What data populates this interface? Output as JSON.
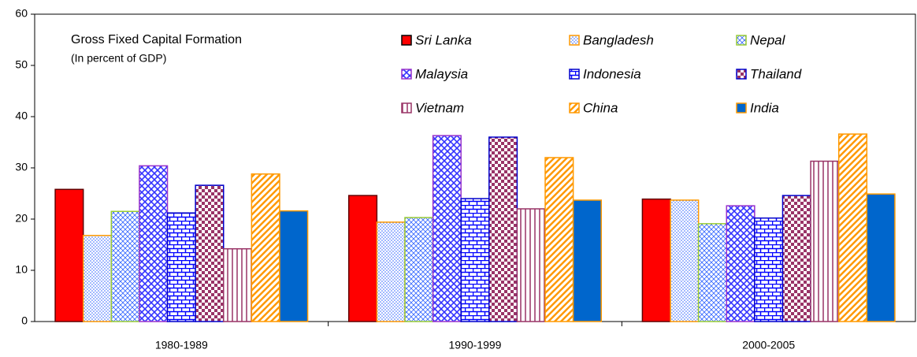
{
  "chart_data": {
    "type": "bar",
    "title": "Gross Fixed Capital Formation",
    "subtitle": "(In percent of GDP)",
    "categories": [
      "1980-1989",
      "1990-1999",
      "2000-2005"
    ],
    "series": [
      {
        "name": "Sri Lanka",
        "color": "#ff0000",
        "edge_color": "#600000",
        "pattern": "solid",
        "values": [
          25.8,
          24.6,
          23.9
        ]
      },
      {
        "name": "Bangladesh",
        "color": "#3366ff",
        "edge_color": "#ff9900",
        "pattern": "dots",
        "values": [
          16.8,
          19.4,
          23.7
        ]
      },
      {
        "name": "Nepal",
        "color": "#3366ff",
        "edge_color": "#99cc33",
        "pattern": "lattice",
        "values": [
          21.5,
          20.3,
          19.1
        ]
      },
      {
        "name": "Malaysia",
        "color": "#3333ff",
        "edge_color": "#9933cc",
        "pattern": "diagcross",
        "values": [
          30.4,
          36.3,
          22.6
        ]
      },
      {
        "name": "Indonesia",
        "color": "#0000ff",
        "edge_color": "#0000cc",
        "pattern": "brick",
        "values": [
          21.2,
          24.0,
          20.2
        ]
      },
      {
        "name": "Thailand",
        "color": "#993366",
        "edge_color": "#0000cc",
        "pattern": "checker",
        "values": [
          26.6,
          36.0,
          24.6
        ]
      },
      {
        "name": "Vietnam",
        "color": "#993366",
        "edge_color": "#993366",
        "pattern": "vertical",
        "values": [
          14.2,
          22.0,
          31.3
        ]
      },
      {
        "name": "China",
        "color": "#ff9900",
        "edge_color": "#ff9900",
        "pattern": "diagonal",
        "values": [
          28.8,
          32.0,
          36.6
        ]
      },
      {
        "name": "India",
        "color": "#0066cc",
        "edge_color": "#ff9900",
        "pattern": "solid",
        "values": [
          21.6,
          23.7,
          24.9
        ]
      }
    ],
    "ylim": [
      0,
      60
    ],
    "yticks": [
      0,
      10,
      20,
      30,
      40,
      50,
      60
    ],
    "grid": false,
    "legend": "top-right"
  }
}
